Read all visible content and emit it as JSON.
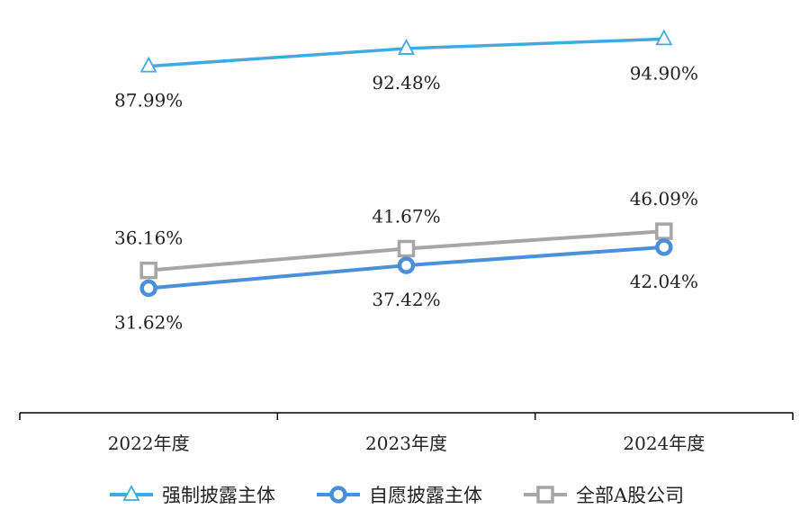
{
  "chart_data": {
    "type": "line",
    "categories": [
      "2022年度",
      "2023年度",
      "2024年度"
    ],
    "series": [
      {
        "name": "强制披露主体",
        "values": [
          87.99,
          92.48,
          94.9
        ],
        "labels": [
          "87.99%",
          "92.48%",
          "94.90%"
        ],
        "color": "#3fa9e0",
        "marker": "triangle",
        "label_pos": "below"
      },
      {
        "name": "自愿披露主体",
        "values": [
          31.62,
          37.42,
          42.04
        ],
        "labels": [
          "31.62%",
          "37.42%",
          "42.04%"
        ],
        "color": "#4a90d9",
        "marker": "circle",
        "label_pos": "below"
      },
      {
        "name": "全部A股公司",
        "values": [
          36.16,
          41.67,
          46.09
        ],
        "labels": [
          "36.16%",
          "41.67%",
          "46.09%"
        ],
        "color": "#a6a6a6",
        "marker": "square",
        "label_pos": "above"
      }
    ],
    "ylim": [
      0,
      100
    ],
    "grid": false,
    "legend": "bottom",
    "title": "",
    "xlabel": "",
    "ylabel": ""
  }
}
